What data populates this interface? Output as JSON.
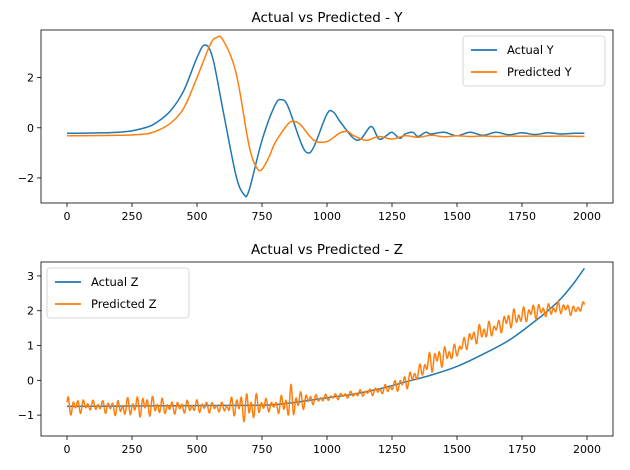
{
  "chart_data": [
    {
      "type": "line",
      "title": "Actual vs Predicted - Y",
      "xlabel": "",
      "ylabel": "",
      "xlim": [
        -100,
        2100
      ],
      "ylim": [
        -3.0,
        3.9
      ],
      "xticks": [
        0,
        250,
        500,
        750,
        1000,
        1250,
        1500,
        1750,
        2000
      ],
      "yticks": [
        -2,
        0,
        2
      ],
      "grid": false,
      "legend_position": "top-right",
      "series": [
        {
          "name": "Actual Y",
          "color": "#1f77b4",
          "x": [
            0,
            200,
            300,
            350,
            400,
            450,
            500,
            530,
            560,
            600,
            650,
            680,
            700,
            750,
            800,
            825,
            850,
            900,
            925,
            950,
            1000,
            1025,
            1050,
            1100,
            1130,
            1170,
            1200,
            1230,
            1250,
            1280,
            1300,
            1330,
            1350,
            1380,
            1400,
            1450,
            1500,
            1550,
            1600,
            1650,
            1700,
            1750,
            1800,
            1850,
            1900,
            1950,
            1990
          ],
          "y": [
            -0.22,
            -0.18,
            0.0,
            0.25,
            0.7,
            1.5,
            2.8,
            3.3,
            2.8,
            0.7,
            -1.9,
            -2.65,
            -2.5,
            -0.5,
            0.9,
            1.12,
            0.85,
            -0.6,
            -1.0,
            -0.75,
            0.55,
            0.62,
            0.25,
            -0.4,
            -0.45,
            0.05,
            -0.45,
            -0.3,
            -0.18,
            -0.42,
            -0.25,
            -0.18,
            -0.35,
            -0.18,
            -0.25,
            -0.18,
            -0.32,
            -0.18,
            -0.3,
            -0.18,
            -0.28,
            -0.2,
            -0.27,
            -0.2,
            -0.25,
            -0.22,
            -0.22
          ]
        },
        {
          "name": "Predicted Y",
          "color": "#ff7f0e",
          "x": [
            0,
            200,
            300,
            350,
            400,
            450,
            500,
            550,
            575,
            600,
            650,
            700,
            730,
            750,
            780,
            800,
            850,
            875,
            900,
            950,
            1000,
            1050,
            1080,
            1100,
            1150,
            1200,
            1250,
            1300,
            1350,
            1400,
            1450,
            1500,
            1550,
            1600,
            1650,
            1700,
            1750,
            1800,
            1850,
            1900,
            1950,
            1990
          ],
          "y": [
            -0.32,
            -0.3,
            -0.25,
            -0.1,
            0.2,
            0.8,
            2.0,
            3.3,
            3.6,
            3.5,
            2.2,
            -0.7,
            -1.6,
            -1.65,
            -1.1,
            -0.6,
            0.15,
            0.25,
            0.1,
            -0.5,
            -0.55,
            -0.2,
            -0.15,
            -0.3,
            -0.5,
            -0.35,
            -0.45,
            -0.32,
            -0.38,
            -0.3,
            -0.36,
            -0.32,
            -0.35,
            -0.33,
            -0.35,
            -0.33,
            -0.34,
            -0.33,
            -0.34,
            -0.33,
            -0.34,
            -0.34
          ]
        }
      ]
    },
    {
      "type": "line",
      "title": "Actual vs Predicted - Z",
      "xlabel": "",
      "ylabel": "",
      "xlim": [
        -100,
        2100
      ],
      "ylim": [
        -1.6,
        3.4
      ],
      "xticks": [
        0,
        250,
        500,
        750,
        1000,
        1250,
        1500,
        1750,
        2000
      ],
      "yticks": [
        -1,
        0,
        1,
        2,
        3
      ],
      "grid": false,
      "legend_position": "top-left",
      "series": [
        {
          "name": "Actual Z",
          "color": "#1f77b4",
          "x": [
            0,
            200,
            400,
            600,
            800,
            1000,
            1100,
            1200,
            1300,
            1400,
            1500,
            1600,
            1700,
            1800,
            1850,
            1900,
            1950,
            1990
          ],
          "y": [
            -0.75,
            -0.74,
            -0.73,
            -0.72,
            -0.7,
            -0.5,
            -0.4,
            -0.25,
            -0.05,
            0.15,
            0.4,
            0.75,
            1.15,
            1.7,
            2.0,
            2.35,
            2.8,
            3.22
          ]
        },
        {
          "name": "Predicted Z",
          "color": "#ff7f0e",
          "x": [
            0,
            100,
            200,
            300,
            400,
            500,
            600,
            650,
            700,
            750,
            800,
            860,
            900,
            950,
            1000,
            1100,
            1200,
            1250,
            1300,
            1350,
            1400,
            1450,
            1500,
            1550,
            1600,
            1650,
            1700,
            1750,
            1800,
            1850,
            1900,
            1950,
            1990
          ],
          "y": [
            -0.75,
            -0.72,
            -0.8,
            -0.72,
            -0.78,
            -0.75,
            -0.78,
            -0.72,
            -0.78,
            -0.7,
            -0.74,
            -0.65,
            -0.58,
            -0.55,
            -0.5,
            -0.4,
            -0.3,
            -0.2,
            -0.05,
            0.2,
            0.55,
            0.7,
            0.85,
            1.2,
            1.4,
            1.5,
            1.75,
            1.85,
            2.0,
            2.0,
            2.1,
            2.0,
            2.15
          ],
          "oscillation_amplitude": [
            0.3,
            0.15,
            0.25,
            0.35,
            0.2,
            0.2,
            0.15,
            0.35,
            0.5,
            0.25,
            0.15,
            0.55,
            0.3,
            0.15,
            0.1,
            0.1,
            0.12,
            0.15,
            0.25,
            0.2,
            0.35,
            0.3,
            0.2,
            0.25,
            0.3,
            0.2,
            0.3,
            0.25,
            0.25,
            0.2,
            0.2,
            0.15,
            0.12
          ]
        }
      ]
    }
  ]
}
